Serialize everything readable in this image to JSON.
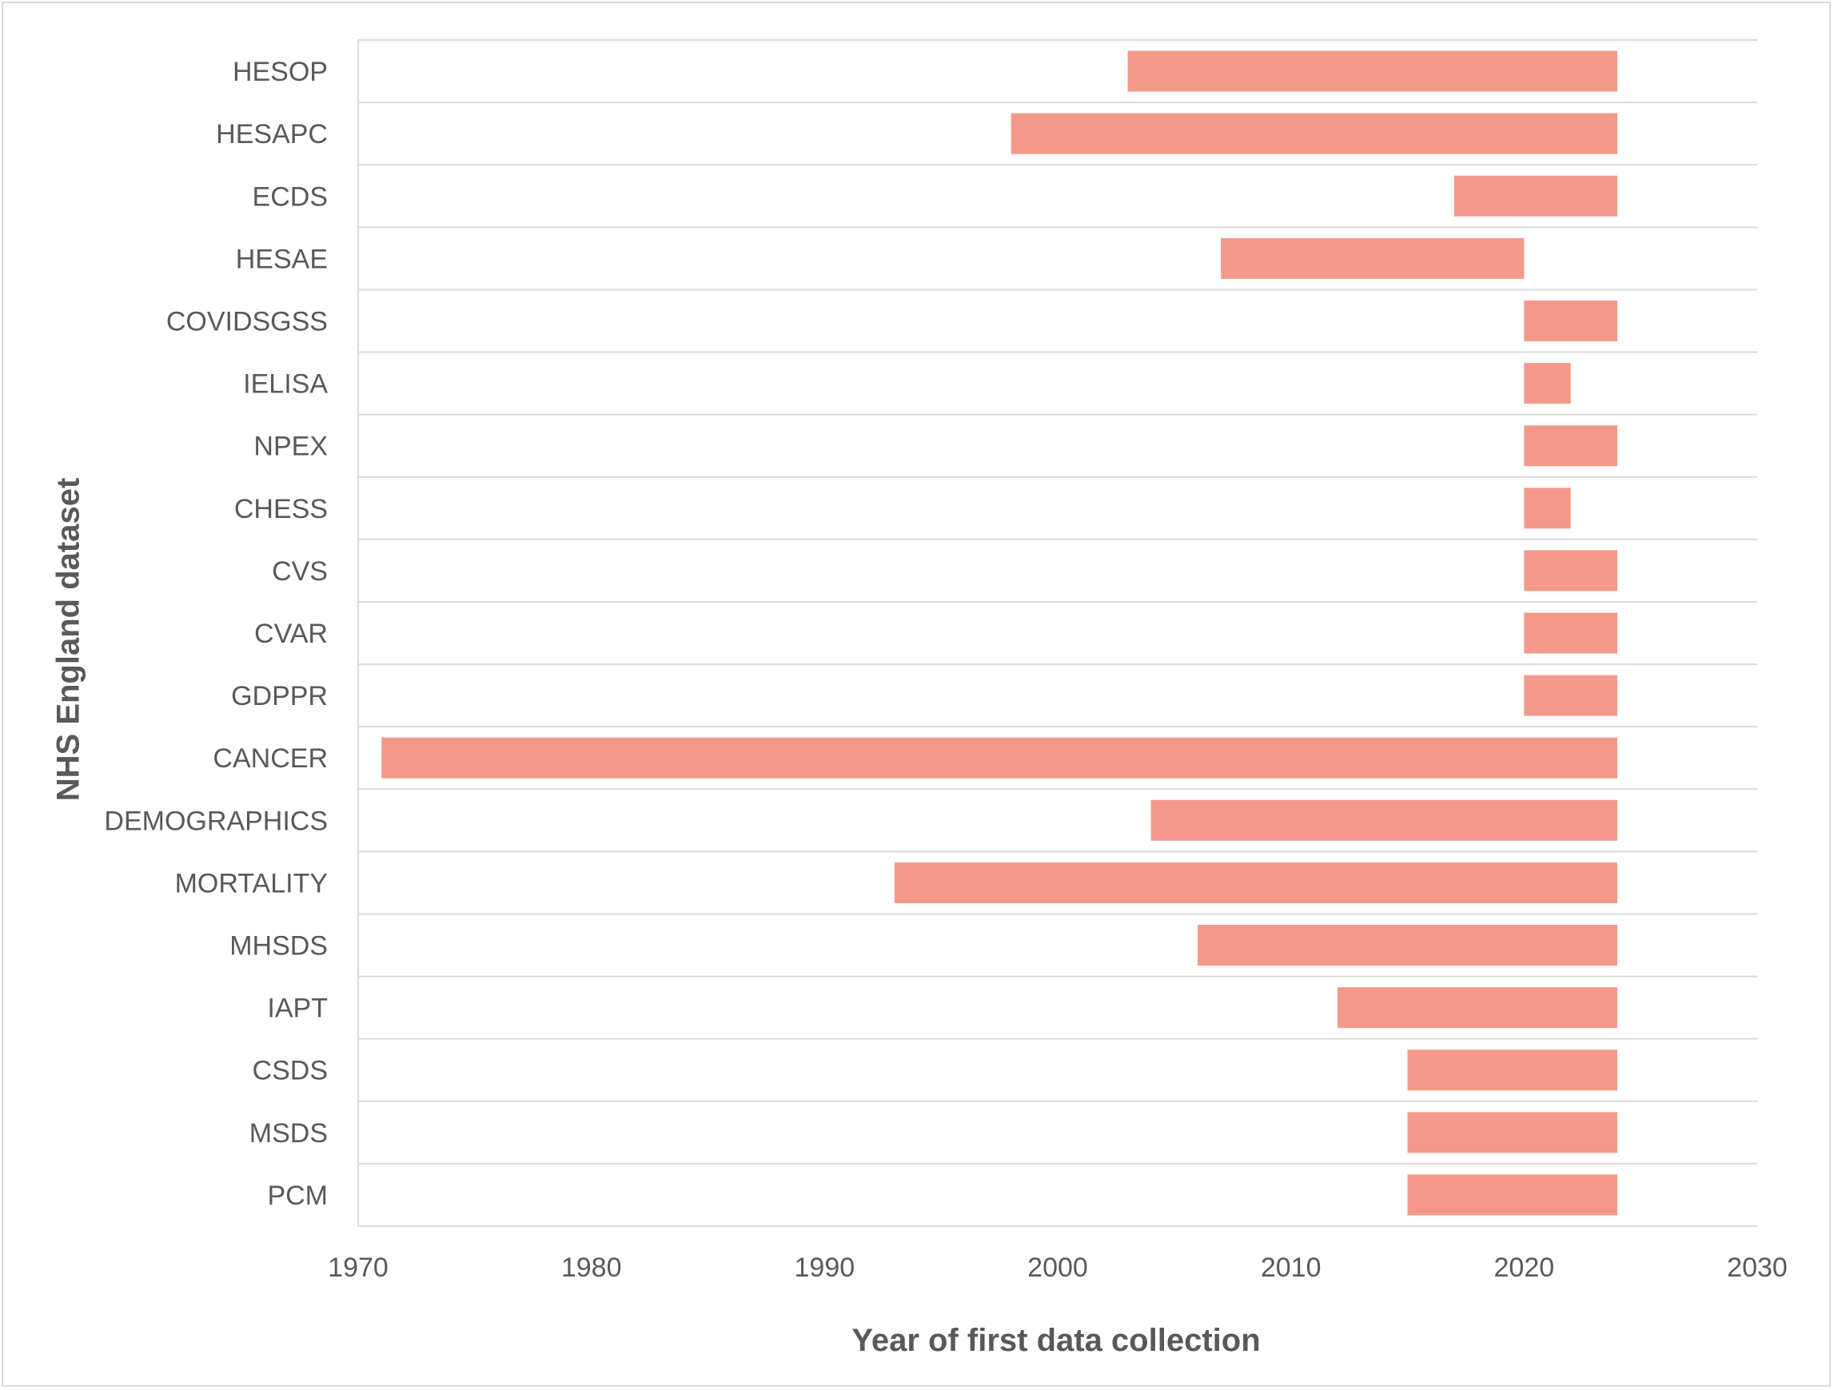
{
  "chart_data": {
    "type": "bar",
    "orientation": "horizontal",
    "style": "floating-range",
    "title": "",
    "xlabel": "Year of first data collection",
    "ylabel": "NHS England dataset",
    "xlim": [
      1970,
      2030
    ],
    "xticks": [
      "1970",
      "1980",
      "1990",
      "2000",
      "2010",
      "2020",
      "2030"
    ],
    "grid": "horizontal category separators",
    "bar_color": "#f4998a",
    "categories": [
      "HESOP",
      "HESAPC",
      "ECDS",
      "HESAE",
      "COVIDSGSS",
      "IELISA",
      "NPEX",
      "CHESS",
      "CVS",
      "CVAR",
      "GDPPR",
      "CANCER",
      "DEMOGRAPHICS",
      "MORTALITY",
      "MHSDS",
      "IAPT",
      "CSDS",
      "MSDS",
      "PCM"
    ],
    "series": [
      {
        "ranges": [
          [
            2003,
            2024
          ],
          [
            1998,
            2024
          ],
          [
            2017,
            2024
          ],
          [
            2007,
            2020
          ],
          [
            2020,
            2024
          ],
          [
            2020,
            2022
          ],
          [
            2020,
            2024
          ],
          [
            2020,
            2022
          ],
          [
            2020,
            2024
          ],
          [
            2020,
            2024
          ],
          [
            2020,
            2024
          ],
          [
            1971,
            2024
          ],
          [
            2004,
            2024
          ],
          [
            1993,
            2024
          ],
          [
            2006,
            2024
          ],
          [
            2012,
            2024
          ],
          [
            2015,
            2024
          ],
          [
            2015,
            2024
          ],
          [
            2015,
            2024
          ]
        ]
      }
    ]
  }
}
